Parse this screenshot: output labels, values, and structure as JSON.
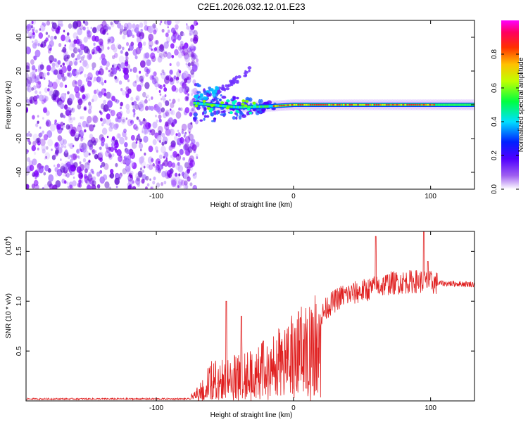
{
  "figure_title": "C2E1.2026.032.12.01.E23",
  "chart_data": [
    {
      "type": "heatmap",
      "name": "spectrogram",
      "xlabel": "Height of straight line (km)",
      "ylabel": "Frequency (Hz)",
      "xlim": [
        -195,
        132
      ],
      "ylim": [
        -50,
        50
      ],
      "xticks": [
        -100,
        0,
        100
      ],
      "yticks": [
        -40,
        -20,
        0,
        20,
        40
      ],
      "xtick_labels": [
        "-100",
        "0",
        "100"
      ],
      "ytick_labels": [
        "-40",
        "-20",
        "0",
        "20",
        "40"
      ],
      "noise_region_x": [
        -195,
        -73
      ],
      "signal_onset_km": -73,
      "upper_branch": [
        [
          -72,
          3
        ],
        [
          -60,
          7
        ],
        [
          -48,
          11
        ],
        [
          -38,
          17
        ],
        [
          -32,
          20
        ]
      ],
      "main_signal": [
        [
          -72,
          1
        ],
        [
          -55,
          -0.5
        ],
        [
          -40,
          -1.5
        ],
        [
          -20,
          -1
        ],
        [
          0,
          0
        ],
        [
          40,
          0
        ],
        [
          100,
          0
        ],
        [
          132,
          0
        ]
      ],
      "grid": false
    },
    {
      "type": "line",
      "name": "snr",
      "xlabel": "Height of straight line (km)",
      "ylabel": "SNR (10 * v/v)",
      "ylabel_scale_base": "(x10",
      "ylabel_scale_exp": "4",
      "xlim": [
        -195,
        132
      ],
      "ylim": [
        0,
        1.7
      ],
      "xticks": [
        -100,
        0,
        100
      ],
      "yticks": [
        0.5,
        1.0,
        1.5
      ],
      "xtick_labels": [
        "-100",
        "0",
        "100"
      ],
      "ytick_labels": [
        "0.5",
        "1.0",
        "1.5"
      ],
      "color": "#e02020",
      "envelope": [
        [
          -195,
          0.02
        ],
        [
          -75,
          0.02
        ],
        [
          -68,
          0.15
        ],
        [
          -60,
          0.3
        ],
        [
          -40,
          0.35
        ],
        [
          -20,
          0.45
        ],
        [
          -10,
          0.55
        ],
        [
          0,
          0.65
        ],
        [
          10,
          0.75
        ],
        [
          18,
          0.8
        ],
        [
          25,
          0.95
        ],
        [
          35,
          1.05
        ],
        [
          50,
          1.1
        ],
        [
          70,
          1.18
        ],
        [
          90,
          1.2
        ],
        [
          105,
          1.18
        ],
        [
          132,
          1.17
        ]
      ],
      "spikes": [
        [
          -49,
          1.0
        ],
        [
          -38,
          0.85
        ],
        [
          -22,
          0.6
        ],
        [
          60,
          1.65
        ],
        [
          95,
          1.72
        ],
        [
          98,
          1.4
        ]
      ]
    }
  ],
  "colorbar": {
    "label": "Normalized spectral amplitude",
    "range": [
      0,
      1
    ],
    "ticks": [
      0.0,
      0.2,
      0.4,
      0.6,
      0.8
    ],
    "tick_labels": [
      "0.0",
      "0.2",
      "0.4",
      "0.6",
      "0.8"
    ],
    "colors": [
      "#ffffff",
      "#8a2be2",
      "#0000ff",
      "#00ffff",
      "#00ff00",
      "#ffff00",
      "#ff8000",
      "#ff0000",
      "#ff00ff"
    ]
  }
}
